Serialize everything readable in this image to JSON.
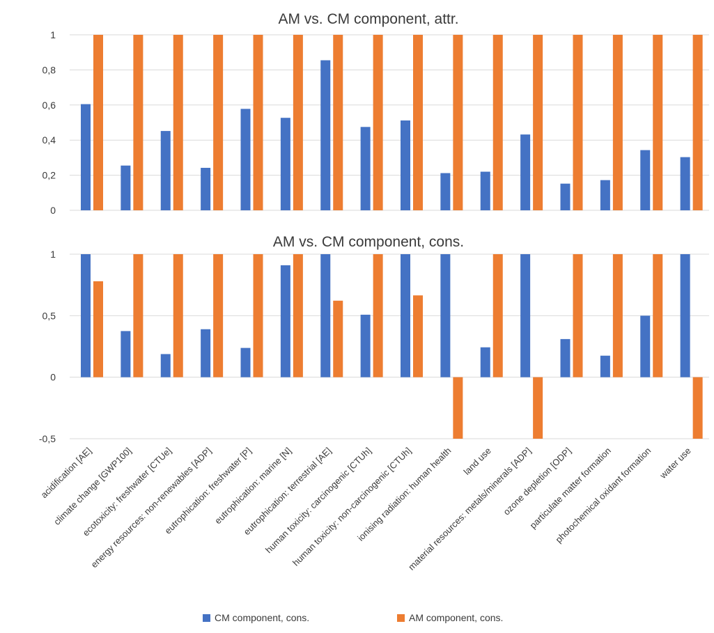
{
  "chart_data": {
    "panels": [
      {
        "type": "bar",
        "title": "AM vs. CM component, attr.",
        "ylim": [
          0,
          1
        ],
        "yticks": [
          0,
          0.2,
          0.4,
          0.6,
          0.8,
          1
        ],
        "ytick_labels": [
          "0",
          "0,2",
          "0,4",
          "0,6",
          "0,8",
          "1"
        ],
        "grid": true,
        "series": [
          {
            "key": "cm",
            "values": [
              0.605,
              0.255,
              0.452,
              0.242,
              0.578,
              0.527,
              0.855,
              0.475,
              0.512,
              0.212,
              0.22,
              0.432,
              0.152,
              0.172,
              0.343,
              0.303
            ]
          },
          {
            "key": "am",
            "values": [
              1,
              1,
              1,
              1,
              1,
              1,
              1,
              1,
              1,
              1,
              1,
              1,
              1,
              1,
              1,
              1
            ]
          }
        ]
      },
      {
        "type": "bar",
        "title": "AM vs. CM component, cons.",
        "ylim": [
          -0.5,
          1
        ],
        "yticks": [
          -0.5,
          0,
          0.5,
          1
        ],
        "ytick_labels": [
          "-0,5",
          "0",
          "0,5",
          "1"
        ],
        "grid": true,
        "series": [
          {
            "key": "cm",
            "values": [
              1,
              0.375,
              0.188,
              0.39,
              0.238,
              0.91,
              1,
              0.508,
              1,
              1,
              0.243,
              1,
              0.31,
              0.175,
              0.5,
              1
            ]
          },
          {
            "key": "am",
            "values": [
              0.78,
              1,
              1,
              1,
              1,
              1,
              0.622,
              1,
              0.665,
              -0.5,
              1,
              -0.5,
              1,
              1,
              1,
              -0.5
            ]
          }
        ]
      }
    ],
    "categories": [
      "acidification [AE]",
      "climate change [GWP100]",
      "ecotoxicity: freshwater [CTUe]",
      "energy resources: non-renewables [ADP]",
      "eutrophication: freshwater [P]",
      "eutrophication: marine [N]",
      "eutrophication: terrestrial [AE]",
      "human toxicity: carcinogenic [CTUh]",
      "human toxicity: non-carcinogenic [CTUh]",
      "ionising radiation: human health",
      "land use",
      "material resources: metals/minerals [ADP]",
      "ozone depletion [ODP]",
      "particulate matter formation",
      "photochemical oxidant formation",
      "water use"
    ],
    "legend": [
      {
        "key": "cm",
        "label": "CM component, cons.",
        "color": "#4472C4"
      },
      {
        "key": "am",
        "label": "AM component, cons.",
        "color": "#ED7D31"
      }
    ],
    "legend_position": "bottom",
    "colors": {
      "cm": "#4472C4",
      "am": "#ED7D31",
      "grid": "#d9d9d9",
      "text": "#3a3a3a"
    }
  }
}
